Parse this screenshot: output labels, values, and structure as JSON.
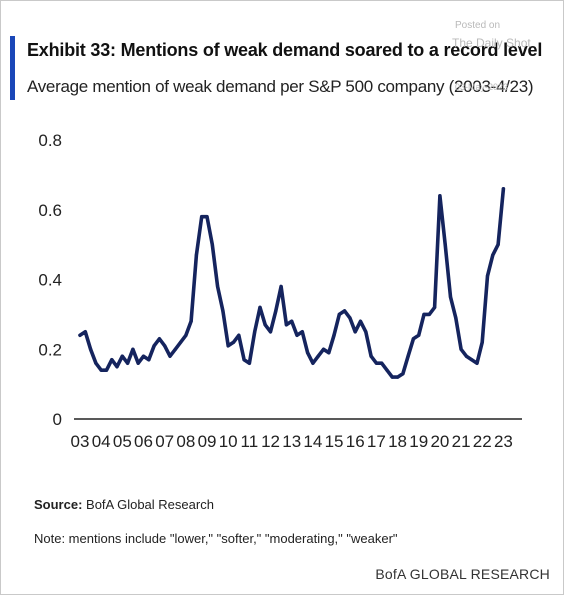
{
  "header": {
    "title": "Exhibit 33: Mentions of weak demand soared to a record level",
    "subtitle": "Average mention of weak demand per S&P 500 company (2003-4/23)"
  },
  "watermark": {
    "posted_on": "Posted on",
    "site": "The Daily Shot",
    "date": "03-May-2023"
  },
  "footer": {
    "source_label": "Source:",
    "source_text": " BofA Global Research",
    "note": "Note: mentions include \"lower,\" \"softer,\" \"moderating,\" \"weaker\"",
    "brand": "BofA GLOBAL RESEARCH"
  },
  "colors": {
    "line": "#15245e",
    "accent": "#1a47b8",
    "axis": "#222222"
  },
  "chart_data": {
    "type": "line",
    "title": "Exhibit 33: Mentions of weak demand soared to a record level",
    "subtitle": "Average mention of weak demand per S&P 500 company (2003-4/23)",
    "xlabel": "",
    "ylabel": "",
    "ylim": [
      0,
      0.8
    ],
    "yticks": [
      0,
      0.2,
      0.4,
      0.6,
      0.8
    ],
    "ytick_labels": [
      "0",
      "0.2",
      "0.4",
      "0.6",
      "0.8"
    ],
    "xlim": [
      2003,
      2023.5
    ],
    "xticks": [
      2003,
      2004,
      2005,
      2006,
      2007,
      2008,
      2009,
      2010,
      2011,
      2012,
      2013,
      2014,
      2015,
      2016,
      2017,
      2018,
      2019,
      2020,
      2021,
      2022,
      2023
    ],
    "xtick_labels": [
      "03",
      "04",
      "05",
      "06",
      "07",
      "08",
      "09",
      "10",
      "11",
      "12",
      "13",
      "14",
      "15",
      "16",
      "17",
      "18",
      "19",
      "20",
      "21",
      "22",
      "23"
    ],
    "grid": false,
    "legend": "none",
    "series": [
      {
        "values": [
          [
            2003.0,
            0.24
          ],
          [
            2003.25,
            0.25
          ],
          [
            2003.5,
            0.2
          ],
          [
            2003.75,
            0.16
          ],
          [
            2004.0,
            0.14
          ],
          [
            2004.25,
            0.14
          ],
          [
            2004.5,
            0.17
          ],
          [
            2004.75,
            0.15
          ],
          [
            2005.0,
            0.18
          ],
          [
            2005.25,
            0.16
          ],
          [
            2005.5,
            0.2
          ],
          [
            2005.75,
            0.16
          ],
          [
            2006.0,
            0.18
          ],
          [
            2006.25,
            0.17
          ],
          [
            2006.5,
            0.21
          ],
          [
            2006.75,
            0.23
          ],
          [
            2007.0,
            0.21
          ],
          [
            2007.25,
            0.18
          ],
          [
            2007.5,
            0.2
          ],
          [
            2007.75,
            0.22
          ],
          [
            2008.0,
            0.24
          ],
          [
            2008.25,
            0.28
          ],
          [
            2008.5,
            0.47
          ],
          [
            2008.75,
            0.58
          ],
          [
            2009.0,
            0.58
          ],
          [
            2009.25,
            0.5
          ],
          [
            2009.5,
            0.38
          ],
          [
            2009.75,
            0.31
          ],
          [
            2010.0,
            0.21
          ],
          [
            2010.25,
            0.22
          ],
          [
            2010.5,
            0.24
          ],
          [
            2010.75,
            0.17
          ],
          [
            2011.0,
            0.16
          ],
          [
            2011.25,
            0.25
          ],
          [
            2011.5,
            0.32
          ],
          [
            2011.75,
            0.27
          ],
          [
            2012.0,
            0.25
          ],
          [
            2012.25,
            0.31
          ],
          [
            2012.5,
            0.38
          ],
          [
            2012.75,
            0.27
          ],
          [
            2013.0,
            0.28
          ],
          [
            2013.25,
            0.24
          ],
          [
            2013.5,
            0.25
          ],
          [
            2013.75,
            0.19
          ],
          [
            2014.0,
            0.16
          ],
          [
            2014.25,
            0.18
          ],
          [
            2014.5,
            0.2
          ],
          [
            2014.75,
            0.19
          ],
          [
            2015.0,
            0.24
          ],
          [
            2015.25,
            0.3
          ],
          [
            2015.5,
            0.31
          ],
          [
            2015.75,
            0.29
          ],
          [
            2016.0,
            0.25
          ],
          [
            2016.25,
            0.28
          ],
          [
            2016.5,
            0.25
          ],
          [
            2016.75,
            0.18
          ],
          [
            2017.0,
            0.16
          ],
          [
            2017.25,
            0.16
          ],
          [
            2017.5,
            0.14
          ],
          [
            2017.75,
            0.12
          ],
          [
            2018.0,
            0.12
          ],
          [
            2018.25,
            0.13
          ],
          [
            2018.5,
            0.18
          ],
          [
            2018.75,
            0.23
          ],
          [
            2019.0,
            0.24
          ],
          [
            2019.25,
            0.3
          ],
          [
            2019.5,
            0.3
          ],
          [
            2019.75,
            0.32
          ],
          [
            2020.0,
            0.64
          ],
          [
            2020.25,
            0.5
          ],
          [
            2020.5,
            0.35
          ],
          [
            2020.75,
            0.29
          ],
          [
            2021.0,
            0.2
          ],
          [
            2021.25,
            0.18
          ],
          [
            2021.5,
            0.17
          ],
          [
            2021.75,
            0.16
          ],
          [
            2022.0,
            0.22
          ],
          [
            2022.25,
            0.41
          ],
          [
            2022.5,
            0.47
          ],
          [
            2022.75,
            0.5
          ],
          [
            2023.0,
            0.66
          ]
        ]
      }
    ]
  }
}
